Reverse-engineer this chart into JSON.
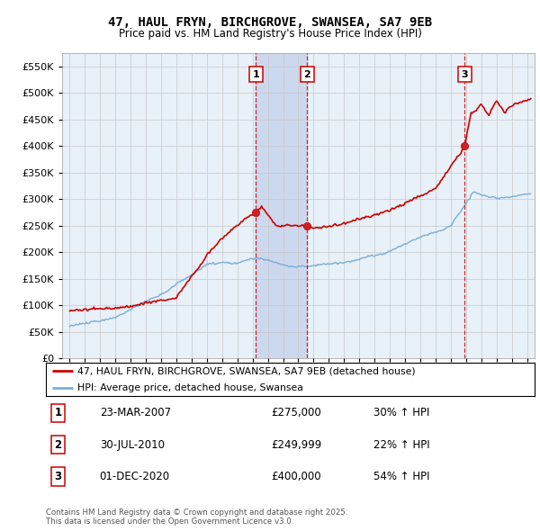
{
  "title": "47, HAUL FRYN, BIRCHGROVE, SWANSEA, SA7 9EB",
  "subtitle": "Price paid vs. HM Land Registry's House Price Index (HPI)",
  "legend_line1": "47, HAUL FRYN, BIRCHGROVE, SWANSEA, SA7 9EB (detached house)",
  "legend_line2": "HPI: Average price, detached house, Swansea",
  "footer": "Contains HM Land Registry data © Crown copyright and database right 2025.\nThis data is licensed under the Open Government Licence v3.0.",
  "transactions": [
    {
      "num": 1,
      "date": "23-MAR-2007",
      "price": 275000,
      "pct": "30%",
      "year": 2007.22
    },
    {
      "num": 2,
      "date": "30-JUL-2010",
      "price": 249999,
      "pct": "22%",
      "year": 2010.58
    },
    {
      "num": 3,
      "date": "01-DEC-2020",
      "price": 400000,
      "pct": "54%",
      "year": 2020.92
    }
  ],
  "red_color": "#cc0000",
  "blue_color": "#7aaed6",
  "bg_color": "#e8f0f8",
  "highlight_color": "#ccd8ee",
  "grid_color": "#c8c8c8",
  "ylim": [
    0,
    575000
  ],
  "yticks": [
    0,
    50000,
    100000,
    150000,
    200000,
    250000,
    300000,
    350000,
    400000,
    450000,
    500000,
    550000
  ],
  "xlim_start": 1994.5,
  "xlim_end": 2025.5
}
